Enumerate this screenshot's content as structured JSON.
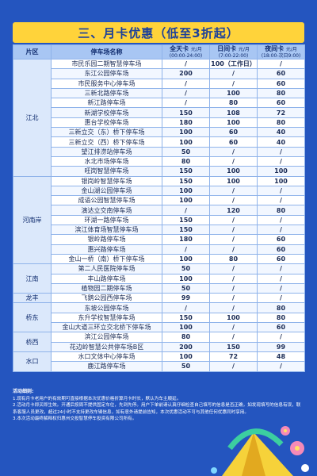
{
  "title": "三、月卡优惠（低至3折起）",
  "headers": {
    "area": "片区",
    "name": "停车场名称",
    "allday": "全天卡",
    "allday_time": "(00:00-24:00)",
    "day": "日间卡",
    "day_time": "(7:00-22:00)",
    "night": "夜间卡",
    "night_time": "(18:00-次日9:00)",
    "unit": "元/月"
  },
  "groups": [
    {
      "area": "江北",
      "rows": [
        [
          "市民乐园二期智慧停车场",
          "/",
          "100（工作日）",
          "/"
        ],
        [
          "东江公园停车场",
          "200",
          "/",
          "60"
        ],
        [
          "市民服务中心停车场",
          "/",
          "/",
          "60"
        ],
        [
          "三新北路停车场",
          "/",
          "100",
          "80"
        ],
        [
          "新江路停车场",
          "/",
          "80",
          "60"
        ],
        [
          "新湖学校停车场",
          "150",
          "108",
          "72"
        ],
        [
          "惠台学校停车场",
          "180",
          "100",
          "80"
        ],
        [
          "三新立交（东）桥下停车场",
          "100",
          "60",
          "40"
        ],
        [
          "三新立交（西）桥下停车场",
          "100",
          "60",
          "40"
        ],
        [
          "望江排涝站停车场",
          "50",
          "/",
          "/"
        ],
        [
          "水北市场停车场",
          "80",
          "/",
          "/"
        ],
        [
          "旺岗智慧停车场",
          "150",
          "100",
          "100"
        ]
      ]
    },
    {
      "area": "河南岸",
      "rows": [
        [
          "银岗岭智慧停车场",
          "150",
          "100",
          "100"
        ],
        [
          "金山湖公园停车场",
          "100",
          "/",
          "/"
        ],
        [
          "成语公园智慧停车场",
          "100",
          "/",
          "/"
        ],
        [
          "演达立交南停车场",
          "/",
          "120",
          "80"
        ],
        [
          "环湖一路停车场",
          "150",
          "/",
          "/"
        ],
        [
          "滨江体育场智慧停车场",
          "150",
          "/",
          "/"
        ],
        [
          "银岭路停车场",
          "180",
          "/",
          "60"
        ],
        [
          "惠兴路停车场",
          "/",
          "/",
          "60"
        ],
        [
          "金山一桥（南）桥下停车场",
          "100",
          "80",
          "60"
        ]
      ]
    },
    {
      "area": "江南",
      "rows": [
        [
          "第二人民医院停车场",
          "50",
          "/",
          "/"
        ],
        [
          "丰山路停车场",
          "100",
          "/",
          "/"
        ],
        [
          "植物园二期停车场",
          "50",
          "/",
          "/"
        ]
      ]
    },
    {
      "area": "龙丰",
      "rows": [
        [
          "飞鹅公园西停车场",
          "99",
          "/",
          "/"
        ]
      ]
    },
    {
      "area": "桥东",
      "rows": [
        [
          "东坡公园停车场",
          "/",
          "/",
          "80"
        ],
        [
          "东升学校智慧停车场",
          "150",
          "100",
          "80"
        ],
        [
          "金山大道三环立交北桥下停车场",
          "100",
          "/",
          "60"
        ]
      ]
    },
    {
      "area": "桥西",
      "rows": [
        [
          "滨江公园停车场",
          "80",
          "/",
          "/"
        ],
        [
          "花边岭智慧公共停车场B区",
          "200",
          "150",
          "99"
        ]
      ]
    },
    {
      "area": "水口",
      "rows": [
        [
          "水口文体中心停车场",
          "100",
          "72",
          "48"
        ],
        [
          "鹿江路停车场",
          "50",
          "/",
          "/"
        ]
      ]
    }
  ],
  "notes": {
    "heading": "活动细则:",
    "items": [
      "1.现有月卡老用户的有效期可直接根据本次优惠价格折算月卡时长，默认为车主顺延。",
      "2.活动月卡即买即生效。开通后按周不提供固定车位，先到先停。用户下单前请认真仔细检查自己填写的信息是否正确，如发现填写的信息有误，联系客服人员更改，超过24小时不支持更改车辆信息，如有意外请提前告知，本次优惠活动不可与其他任何优惠同时享用。",
      "3.本次活动最终解释权归惠州交投智慧停车投资有限公司所有。"
    ]
  }
}
